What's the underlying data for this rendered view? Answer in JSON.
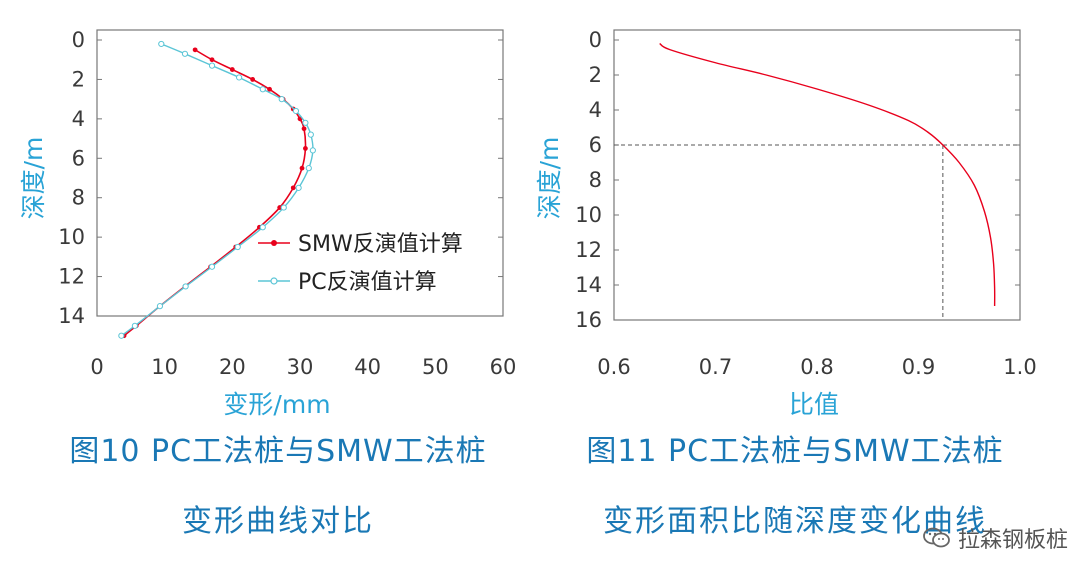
{
  "chart_data": [
    {
      "type": "line",
      "xlabel": "变形/mm",
      "ylabel": "深度/m",
      "xlim": [
        0,
        60
      ],
      "ylim": [
        0,
        14
      ],
      "y_inverted": true,
      "x_ticks": [
        "0",
        "10",
        "20",
        "30",
        "40",
        "50",
        "60"
      ],
      "y_ticks": [
        "0",
        "2",
        "4",
        "6",
        "8",
        "10",
        "12",
        "14"
      ],
      "legend_position": "right",
      "series": [
        {
          "name": "SMW反演值计算",
          "color": "#e8001c",
          "marker": "dot",
          "x": [
            14.5,
            17.0,
            20.0,
            23.0,
            25.5,
            27.5,
            29.0,
            30.0,
            30.6,
            30.8,
            30.3,
            29.0,
            27.0,
            24.0,
            20.5,
            16.8,
            13.0,
            9.3,
            5.8,
            4.0
          ],
          "y": [
            0.5,
            1.0,
            1.5,
            2.0,
            2.5,
            3.0,
            3.5,
            4.0,
            4.5,
            5.5,
            6.5,
            7.5,
            8.5,
            9.5,
            10.5,
            11.5,
            12.5,
            13.5,
            14.5,
            15.0
          ]
        },
        {
          "name": "PC反演值计算",
          "color": "#5bc5d6",
          "marker": "circle",
          "x": [
            9.5,
            13.0,
            17.0,
            21.0,
            24.5,
            27.3,
            29.4,
            30.8,
            31.6,
            31.9,
            31.3,
            29.8,
            27.6,
            24.5,
            20.8,
            17.0,
            13.1,
            9.3,
            5.6,
            3.6
          ],
          "y": [
            0.2,
            0.7,
            1.3,
            1.9,
            2.5,
            3.0,
            3.6,
            4.2,
            4.8,
            5.6,
            6.5,
            7.5,
            8.5,
            9.5,
            10.5,
            11.5,
            12.5,
            13.5,
            14.5,
            15.0
          ]
        }
      ]
    },
    {
      "type": "line",
      "xlabel": "比值",
      "ylabel": "深度/m",
      "xlim": [
        0.6,
        1.0
      ],
      "ylim": [
        0,
        16
      ],
      "y_inverted": true,
      "x_ticks": [
        "0.6",
        "0.7",
        "0.8",
        "0.9",
        "1.0"
      ],
      "y_ticks": [
        "0",
        "2",
        "4",
        "6",
        "8",
        "10",
        "12",
        "14",
        "16"
      ],
      "reference_lines": {
        "y": 6,
        "x": 0.924
      },
      "series": [
        {
          "color": "#e8001c",
          "x": [
            0.645,
            0.655,
            0.7,
            0.75,
            0.8,
            0.85,
            0.89,
            0.91,
            0.924,
            0.94,
            0.955,
            0.965,
            0.971,
            0.974,
            0.975,
            0.975
          ],
          "y": [
            0.2,
            0.55,
            1.3,
            2.0,
            2.8,
            3.7,
            4.6,
            5.3,
            6.0,
            7.0,
            8.3,
            9.8,
            11.3,
            12.8,
            14.2,
            15.2
          ]
        }
      ]
    }
  ],
  "captions": {
    "fig10_line1": "图10 PC工法桩与SMW工法桩",
    "fig10_line2": "变形曲线对比",
    "fig11_line1": "图11 PC工法桩与SMW工法桩",
    "fig11_line2": "变形面积比随深度变化曲线"
  },
  "watermark": "拉森钢板桩",
  "colors": {
    "axis_text": "#3a3a3a",
    "label_blue": "#29a3d6",
    "caption_blue": "#1a78b5"
  }
}
